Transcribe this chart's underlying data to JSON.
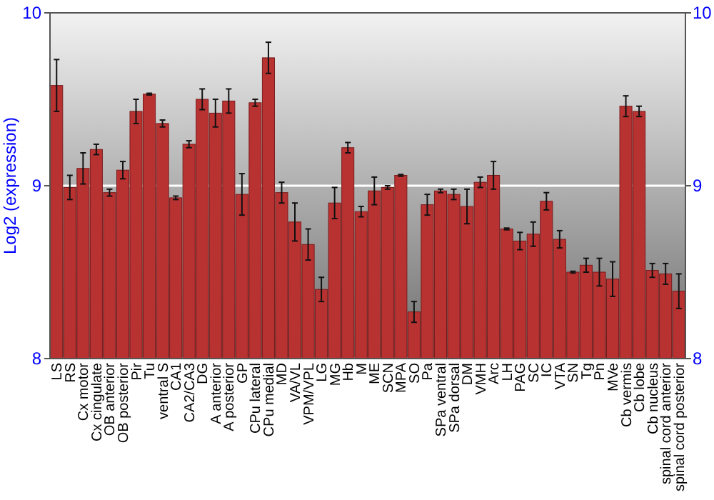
{
  "chart_data": {
    "type": "bar",
    "ylabel": "Log2 (expression)",
    "categories": [
      "LS",
      "RS",
      "Cx motor",
      "Cx cingulate",
      "OB anterior",
      "OB posterior",
      "Pir",
      "Tu",
      "ventral S",
      "CA1",
      "CA2/CA3",
      "DG",
      "A anterior",
      "A posterior",
      "GP",
      "CPu lateral",
      "CPu medial",
      "MD",
      "VA/VL",
      "VPM/VPL",
      "LG",
      "MG",
      "Hb",
      "M",
      "ME",
      "SCN",
      "MPA",
      "SO",
      "Pa",
      "SPa ventral",
      "SPa dorsal",
      "DM",
      "VMH",
      "Arc",
      "LH",
      "PAG",
      "SC",
      "IC",
      "VTA",
      "SN",
      "Tg",
      "Pn",
      "MVe",
      "Cb vermis",
      "Cb lobe",
      "Cb nucleus",
      "spinal cord anterior",
      "spinal cord posterior"
    ],
    "values": [
      9.58,
      8.99,
      9.1,
      9.21,
      8.96,
      9.09,
      9.43,
      9.53,
      9.36,
      8.93,
      9.24,
      9.5,
      9.42,
      9.49,
      8.95,
      9.48,
      9.74,
      8.96,
      8.79,
      8.66,
      8.4,
      8.9,
      9.22,
      8.85,
      8.97,
      8.99,
      9.06,
      8.27,
      8.89,
      8.97,
      8.95,
      8.88,
      9.02,
      9.06,
      8.75,
      8.68,
      8.72,
      8.91,
      8.69,
      8.5,
      8.54,
      8.5,
      8.46,
      9.46,
      9.43,
      8.51,
      8.49,
      8.39
    ],
    "errors": [
      0.15,
      0.07,
      0.09,
      0.03,
      0.02,
      0.05,
      0.07,
      0.005,
      0.02,
      0.01,
      0.02,
      0.06,
      0.08,
      0.07,
      0.12,
      0.02,
      0.09,
      0.06,
      0.11,
      0.09,
      0.07,
      0.09,
      0.03,
      0.03,
      0.08,
      0.01,
      0.005,
      0.06,
      0.06,
      0.01,
      0.03,
      0.1,
      0.03,
      0.08,
      0.005,
      0.05,
      0.07,
      0.05,
      0.05,
      0.005,
      0.04,
      0.08,
      0.1,
      0.06,
      0.03,
      0.04,
      0.06,
      0.1
    ],
    "color": "#b83232",
    "ylim": [
      8,
      10
    ],
    "yticks": [
      8,
      9,
      10
    ],
    "y2lim": [
      8,
      10
    ],
    "y2ticks": [
      8,
      9,
      10
    ],
    "grid": "y"
  }
}
